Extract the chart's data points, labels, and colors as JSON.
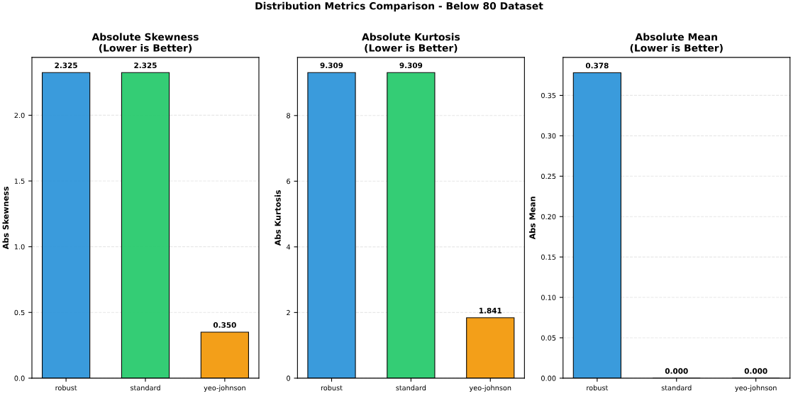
{
  "chart_data": [
    {
      "type": "bar",
      "title": "Absolute Skewness\n(Lower is Better)",
      "ylabel": "Abs Skewness",
      "annotations": [
        "Distribution Metrics Comparison - Below 80 Dataset"
      ],
      "categories": [
        "robust",
        "standard",
        "yeo-johnson"
      ],
      "values": [
        2.325,
        2.325,
        0.35
      ],
      "colors": [
        "#3498db",
        "#2ecc71",
        "#f39c12"
      ],
      "value_labels": [
        "2.325",
        "2.325",
        "0.350"
      ],
      "ylim": [
        0,
        2.44
      ],
      "yticks": [
        {
          "value": 0,
          "label": "0.0"
        },
        {
          "value": 0.5,
          "label": "0.5"
        },
        {
          "value": 1,
          "label": "1.0"
        },
        {
          "value": 1.5,
          "label": "1.5"
        },
        {
          "value": 2,
          "label": "2.0"
        }
      ],
      "grid": "y"
    },
    {
      "type": "bar",
      "title": "Absolute Kurtosis\n(Lower is Better)",
      "ylabel": "Abs Kurtosis",
      "categories": [
        "robust",
        "standard",
        "yeo-johnson"
      ],
      "values": [
        9.309,
        9.309,
        1.841
      ],
      "colors": [
        "#3498db",
        "#2ecc71",
        "#f39c12"
      ],
      "value_labels": [
        "9.309",
        "9.309",
        "1.841"
      ],
      "ylim": [
        0,
        9.77
      ],
      "yticks": [
        0,
        2,
        4,
        6,
        8
      ],
      "grid": "y"
    },
    {
      "type": "bar",
      "title": "Absolute Mean\n(Lower is Better)",
      "ylabel": "Abs Mean",
      "categories": [
        "robust",
        "standard",
        "yeo-johnson"
      ],
      "values": [
        0.378,
        0.0,
        0.0
      ],
      "colors": [
        "#3498db",
        "#2ecc71",
        "#f39c12"
      ],
      "value_labels": [
        "0.378",
        "0.000",
        "0.000"
      ],
      "ylim": [
        0,
        0.397
      ],
      "yticks": [
        {
          "value": 0,
          "label": "0.00"
        },
        {
          "value": 0.05,
          "label": "0.05"
        },
        {
          "value": 0.1,
          "label": "0.10"
        },
        {
          "value": 0.15,
          "label": "0.15"
        },
        {
          "value": 0.2,
          "label": "0.20"
        },
        {
          "value": 0.25,
          "label": "0.25"
        },
        {
          "value": 0.3,
          "label": "0.30"
        },
        {
          "value": 0.35,
          "label": "0.35"
        }
      ],
      "grid": "y"
    }
  ]
}
